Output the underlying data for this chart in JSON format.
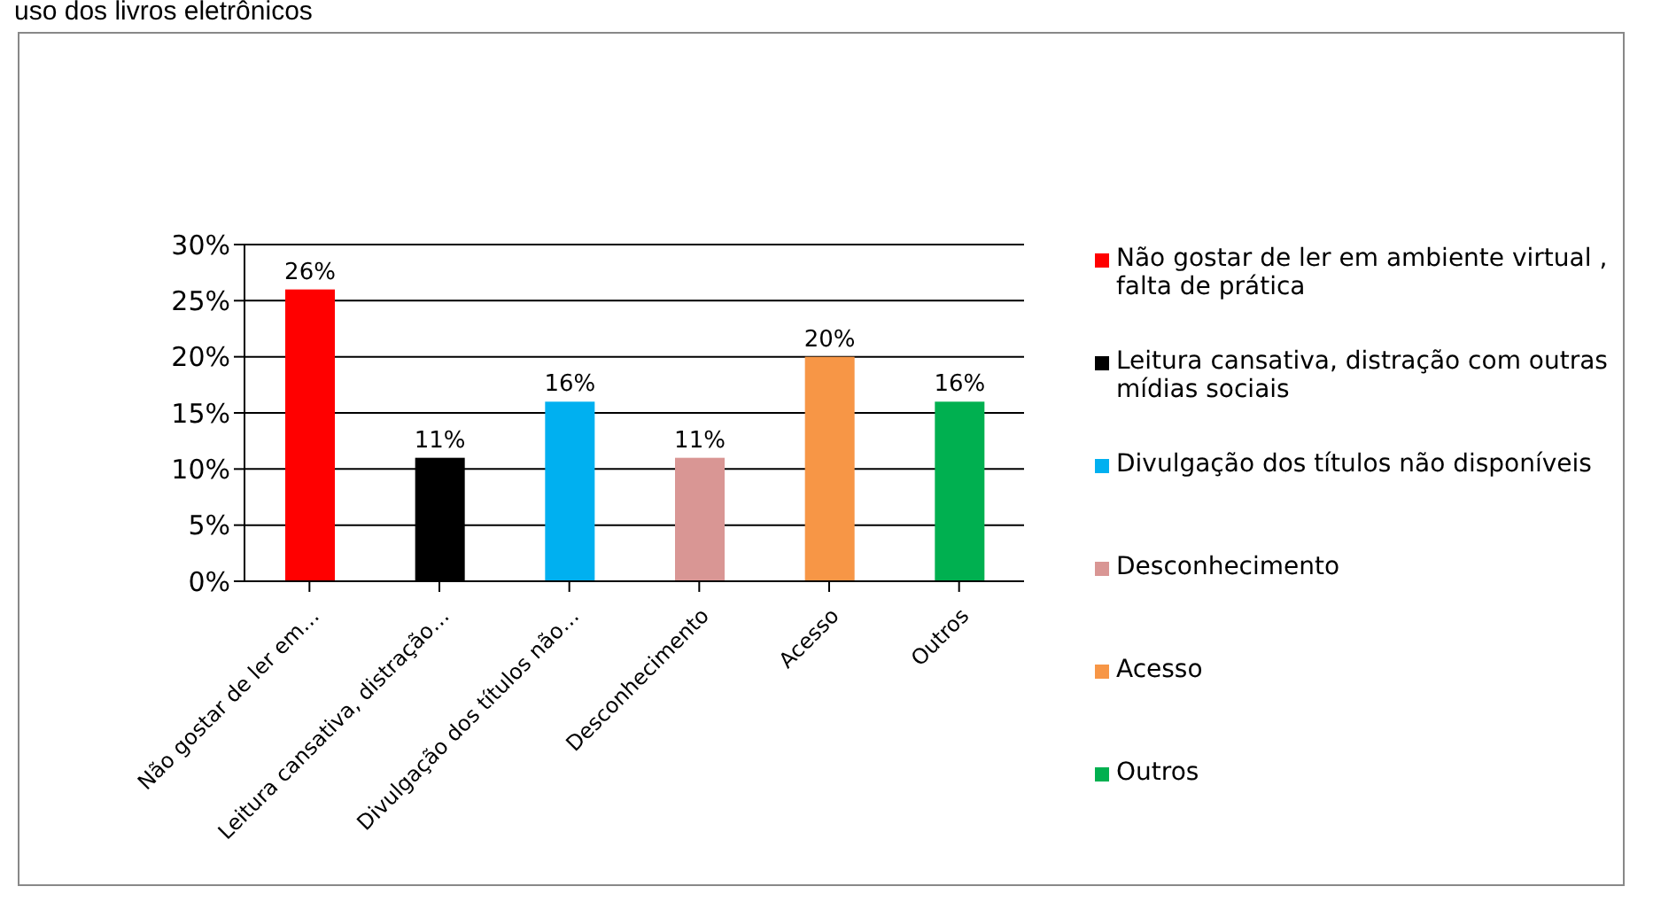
{
  "chart_data": {
    "type": "bar",
    "title": "uso dos livros eletrônicos",
    "categories": [
      "Não gostar de ler em…",
      "Leitura cansativa, distração…",
      "Divulgação dos títulos não…",
      "Desconhecimento",
      "Acesso",
      "Outros"
    ],
    "stacked": true,
    "series": [
      {
        "name": "Não gostar de ler em ambiente virtual , falta de prática",
        "color": "#ff0000",
        "values": [
          26,
          null,
          null,
          null,
          null,
          null
        ],
        "value_labels": [
          "26%",
          null,
          null,
          null,
          null,
          null
        ]
      },
      {
        "name": "Leitura cansativa, distração com outras mídias sociais",
        "color": "#000000",
        "values": [
          null,
          11,
          null,
          null,
          null,
          null
        ],
        "value_labels": [
          null,
          "11%",
          null,
          null,
          null,
          null
        ]
      },
      {
        "name": "Divulgação dos títulos não disponíveis",
        "color": "#00b0f0",
        "values": [
          null,
          null,
          16,
          null,
          null,
          null
        ],
        "value_labels": [
          null,
          null,
          "16%",
          null,
          null,
          null
        ]
      },
      {
        "name": "Desconhecimento",
        "color": "#d99694",
        "values": [
          null,
          null,
          null,
          11,
          null,
          null
        ],
        "value_labels": [
          null,
          null,
          null,
          "11%",
          null,
          null
        ]
      },
      {
        "name": "Acesso",
        "color": "#f79646",
        "values": [
          null,
          null,
          null,
          null,
          20,
          null
        ],
        "value_labels": [
          null,
          null,
          null,
          null,
          "20%",
          null
        ]
      },
      {
        "name": "Outros",
        "color": "#00b050",
        "values": [
          null,
          null,
          null,
          null,
          null,
          16
        ],
        "value_labels": [
          null,
          null,
          null,
          null,
          null,
          "16%"
        ]
      }
    ],
    "ylim": [
      0,
      30
    ],
    "yticks": [
      {
        "value": 0,
        "label": "0%"
      },
      {
        "value": 5,
        "label": "5%"
      },
      {
        "value": 10,
        "label": "10%"
      },
      {
        "value": 15,
        "label": "15%"
      },
      {
        "value": 20,
        "label": "20%"
      },
      {
        "value": 25,
        "label": "25%"
      },
      {
        "value": 30,
        "label": "30%"
      }
    ],
    "grid": "y",
    "legend": "right"
  }
}
